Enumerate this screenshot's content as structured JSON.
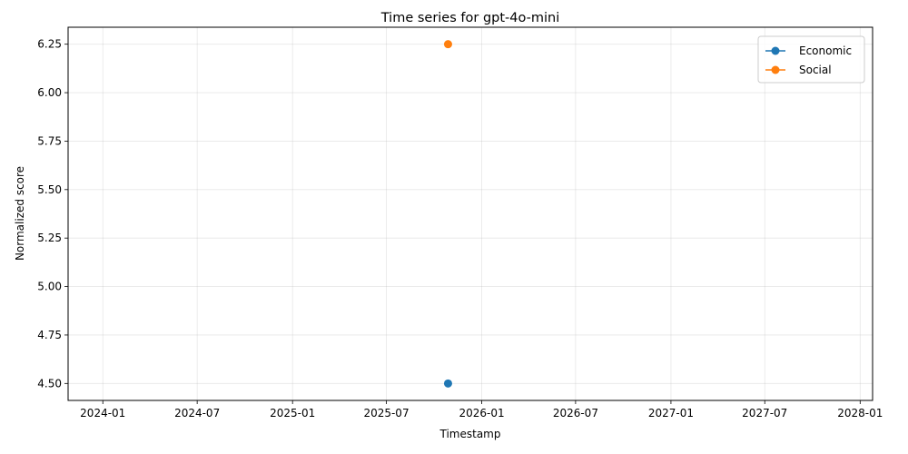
{
  "chart_data": {
    "type": "line",
    "title": "Time series for gpt-4o-mini",
    "xlabel": "Timestamp",
    "ylabel": "Normalized score",
    "x_is_date": true,
    "xlim": [
      "2023-10-26",
      "2028-01-25"
    ],
    "ylim": [
      4.4125,
      6.3375
    ],
    "x_ticks": [
      "2024-01",
      "2024-07",
      "2025-01",
      "2025-07",
      "2026-01",
      "2026-07",
      "2027-01",
      "2027-07",
      "2028-01"
    ],
    "y_ticks": [
      "4.50",
      "4.75",
      "5.00",
      "5.25",
      "5.50",
      "5.75",
      "6.00",
      "6.25"
    ],
    "grid": true,
    "legend_position": "top-right",
    "series": [
      {
        "name": "Economic",
        "color": "#1f77b4",
        "marker": "circle",
        "points": [
          {
            "x": "2025-10-28",
            "y": 4.5
          }
        ]
      },
      {
        "name": "Social",
        "color": "#ff7f0e",
        "marker": "circle",
        "points": [
          {
            "x": "2025-10-28",
            "y": 6.25
          }
        ]
      }
    ]
  }
}
